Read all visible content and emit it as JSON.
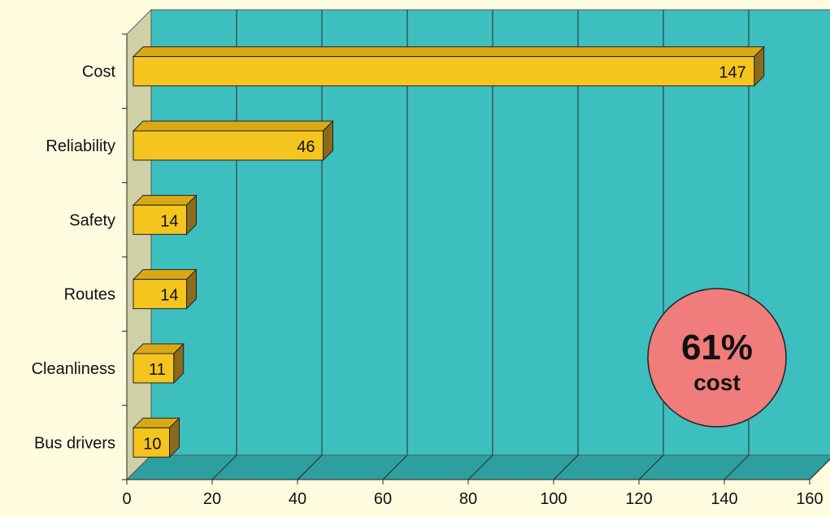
{
  "colors": {
    "page_background": "#FFFCE0",
    "plot_back_wall": "#3DBFBF",
    "plot_floor": "#2E9F9F",
    "plot_side_wall": "#CFCFA8",
    "bar_front": "#F5C51F",
    "bar_top": "#D9A915",
    "bar_side": "#8A6A1B",
    "badge_fill": "#F07C7C"
  },
  "chart_data": {
    "type": "bar",
    "orientation": "horizontal",
    "style": "3d",
    "categories": [
      "Cost",
      "Reliability",
      "Safety",
      "Routes",
      "Cleanliness",
      "Bus drivers"
    ],
    "values": [
      147,
      46,
      14,
      14,
      11,
      10
    ],
    "data_labels": [
      "147",
      "46",
      "14",
      "14",
      "11",
      "10"
    ],
    "xlim": [
      0,
      160
    ],
    "x_ticks": [
      0,
      20,
      40,
      60,
      80,
      100,
      120,
      140,
      160
    ],
    "x_tick_labels": [
      "0",
      "20",
      "40",
      "60",
      "80",
      "100",
      "120",
      "140",
      "160"
    ],
    "grid": "vertical",
    "legend": "none",
    "annotation": {
      "value": "61%",
      "label": "cost"
    }
  }
}
